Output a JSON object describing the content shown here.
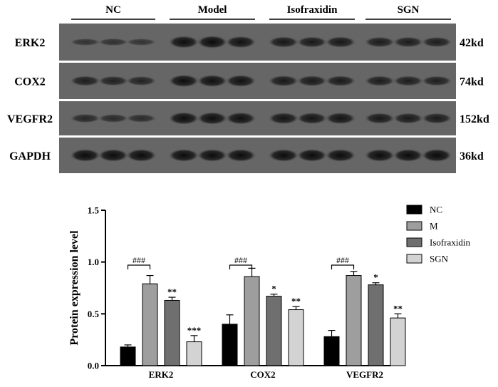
{
  "blot": {
    "groups": [
      "NC",
      "Model",
      "Isofraxidin",
      "SGN"
    ],
    "rows": [
      {
        "protein": "ERK2",
        "size": "42kd",
        "intensity": [
          0.35,
          0.38,
          0.33,
          0.95,
          1.0,
          0.9,
          0.8,
          0.78,
          0.8,
          0.72,
          0.72,
          0.7
        ]
      },
      {
        "protein": "COX2",
        "size": "74kd",
        "intensity": [
          0.7,
          0.65,
          0.62,
          0.95,
          0.92,
          0.9,
          0.78,
          0.76,
          0.75,
          0.72,
          0.7,
          0.68
        ]
      },
      {
        "protein": "VEGFR2",
        "size": "152kd",
        "intensity": [
          0.55,
          0.5,
          0.48,
          0.95,
          0.95,
          0.92,
          0.85,
          0.84,
          0.86,
          0.78,
          0.76,
          0.75
        ]
      },
      {
        "protein": "GAPDH",
        "size": "36kd",
        "intensity": [
          0.98,
          0.97,
          0.98,
          0.98,
          0.97,
          0.98,
          0.97,
          0.98,
          0.97,
          0.97,
          0.98,
          1.0
        ]
      }
    ]
  },
  "chart_data": {
    "type": "bar",
    "categories": [
      "ERK2",
      "COX2",
      "VEGFR2"
    ],
    "ylabel": "Protein expression level",
    "ylim": [
      0,
      1.5
    ],
    "yticks": [
      "0.0",
      "0.5",
      "1.0",
      "1.5"
    ],
    "legend_position": "top-right",
    "series": [
      {
        "name": "NC",
        "color": "#000000",
        "values": [
          0.18,
          0.4,
          0.28
        ],
        "errors": [
          0.02,
          0.09,
          0.06
        ],
        "marks": [
          "",
          "",
          ""
        ]
      },
      {
        "name": "M",
        "color": "#9e9e9e",
        "values": [
          0.79,
          0.86,
          0.87
        ],
        "errors": [
          0.08,
          0.08,
          0.04
        ],
        "marks": [
          "",
          "",
          ""
        ]
      },
      {
        "name": "Isofraxidin",
        "color": "#6f6f6f",
        "values": [
          0.63,
          0.67,
          0.78
        ],
        "errors": [
          0.03,
          0.02,
          0.02
        ],
        "marks": [
          "**",
          "*",
          "*"
        ]
      },
      {
        "name": "SGN",
        "color": "#d3d3d3",
        "values": [
          0.23,
          0.54,
          0.46
        ],
        "errors": [
          0.06,
          0.03,
          0.04
        ],
        "marks": [
          "***",
          "**",
          "**"
        ]
      }
    ],
    "comparisons": [
      {
        "category": "ERK2",
        "label": "###"
      },
      {
        "category": "COX2",
        "label": "###"
      },
      {
        "category": "VEGFR2",
        "label": "###"
      }
    ]
  }
}
